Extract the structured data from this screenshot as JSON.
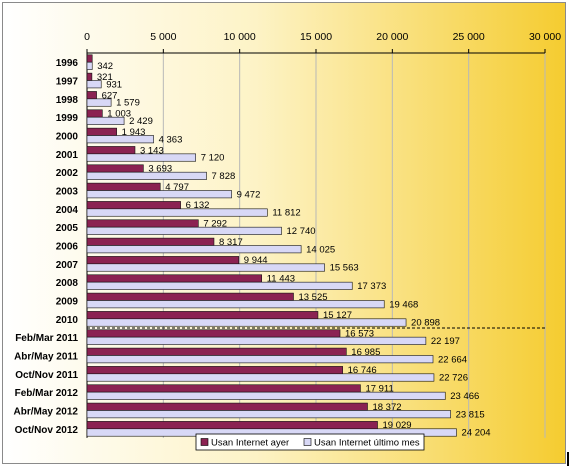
{
  "chart_data": {
    "type": "bar",
    "orientation": "horizontal",
    "categories": [
      "1996",
      "1997",
      "1998",
      "1999",
      "2000",
      "2001",
      "2002",
      "2003",
      "2004",
      "2005",
      "2006",
      "2007",
      "2008",
      "2009",
      "2010",
      "Feb/Mar 2011",
      "Abr/May 2011",
      "Oct/Nov 2011",
      "Feb/Mar 2012",
      "Abr/May 2012",
      "Oct/Nov 2012"
    ],
    "series": [
      {
        "name": "Usan Internet ayer",
        "values": [
          342,
          321,
          627,
          1003,
          1943,
          3143,
          3693,
          4797,
          6132,
          7292,
          8317,
          9944,
          11443,
          13525,
          15127,
          16573,
          16985,
          16746,
          17911,
          18372,
          19029
        ],
        "labels": [
          "",
          "321",
          "627",
          "1 003",
          "1 943",
          "3 143",
          "3 693",
          "4 797",
          "6 132",
          "7 292",
          "8 317",
          "9 944",
          "11 443",
          "13 525",
          "15 127",
          "16 573",
          "16 985",
          "16 746",
          "17 911",
          "18 372",
          "19 029"
        ]
      },
      {
        "name": "Usan Internet último mes",
        "values": [
          342,
          931,
          1579,
          2429,
          4363,
          7120,
          7828,
          9472,
          11812,
          12740,
          14025,
          15563,
          17373,
          19468,
          20898,
          22197,
          22664,
          22726,
          23466,
          23815,
          24204
        ],
        "labels": [
          "342",
          "931",
          "1 579",
          "2 429",
          "4 363",
          "7 120",
          "7 828",
          "9 472",
          "11 812",
          "12 740",
          "14 025",
          "15 563",
          "17 373",
          "19 468",
          "20 898",
          "22 197",
          "22 664",
          "22 726",
          "23 466",
          "23 815",
          "24 204"
        ]
      }
    ],
    "xlim": [
      0,
      30000
    ],
    "x_ticks": [
      0,
      5000,
      10000,
      15000,
      20000,
      25000,
      30000
    ],
    "x_tick_labels": [
      "0",
      "5 000",
      "10 000",
      "15 000",
      "20 000",
      "25 000",
      "30 000"
    ],
    "x_axis_position": "top",
    "grid": true,
    "legend_position": "bottom-center",
    "colors": {
      "series1": "#8b2252",
      "series2": "#d8d8f6",
      "bar_edge": "#111111",
      "background_left": "#ffffff",
      "background_right": "#f5cc30"
    }
  }
}
